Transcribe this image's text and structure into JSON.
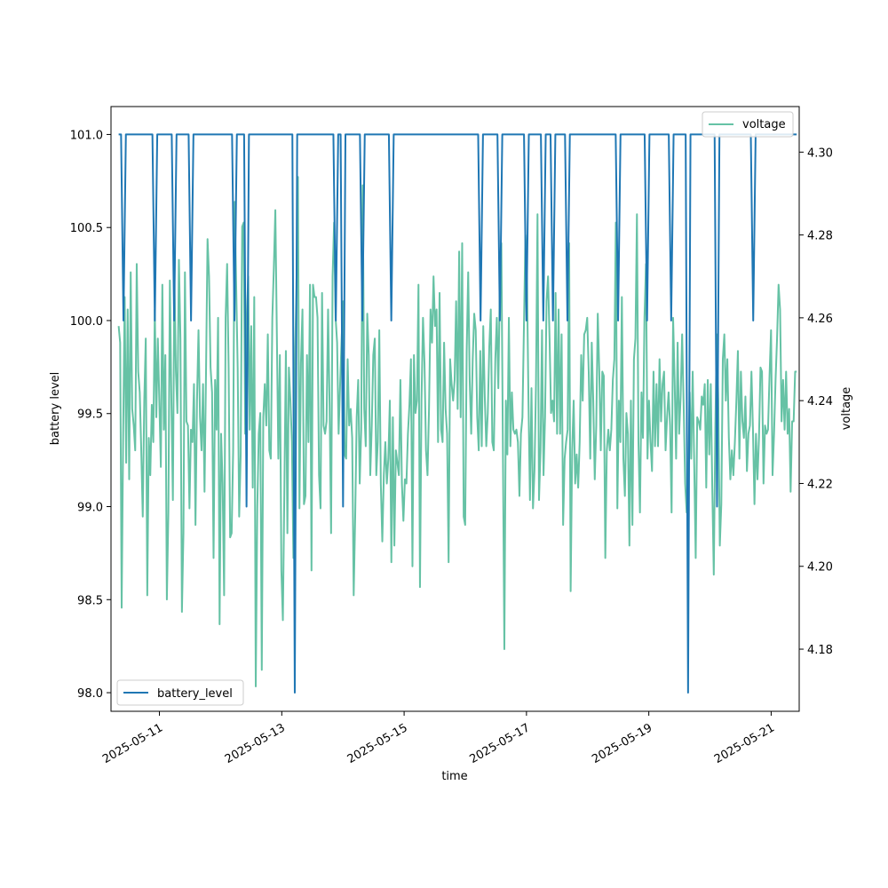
{
  "chart_data": {
    "type": "line",
    "xlabel": "time",
    "ylabel_left": "battery level",
    "ylabel_right": "voltage",
    "x_range": [
      "2025-05-10 08:00",
      "2025-05-21 10:00"
    ],
    "xlim": [
      "2025-05-10 05:00",
      "2025-05-21 11:00"
    ],
    "x_ticks": [
      "2025-05-11",
      "2025-05-13",
      "2025-05-15",
      "2025-05-17",
      "2025-05-19",
      "2025-05-21"
    ],
    "ylim_left": [
      97.9,
      101.15
    ],
    "y_ticks_left": [
      "98.0",
      "98.5",
      "99.0",
      "99.5",
      "100.0",
      "100.5",
      "101.0"
    ],
    "ylim_right": [
      4.165,
      4.311
    ],
    "y_ticks_right": [
      "4.18",
      "4.20",
      "4.22",
      "4.24",
      "4.26",
      "4.28",
      "4.30"
    ],
    "grid": false,
    "colors": {
      "battery_level": "#1f77b4",
      "voltage": "#66c2a5"
    },
    "legends": [
      {
        "name": "battery_level",
        "placement": "lower-left"
      },
      {
        "name": "voltage",
        "placement": "upper-right"
      }
    ],
    "series": [
      {
        "name": "battery_level",
        "axis": "left",
        "values": [
          101,
          101,
          100,
          101,
          101,
          101,
          101,
          101,
          101,
          101,
          101,
          101,
          101,
          101,
          101,
          100,
          101,
          101,
          101,
          101,
          101,
          101,
          101,
          100,
          101,
          101,
          101,
          101,
          101,
          101,
          100,
          101,
          101,
          101,
          101,
          101,
          101,
          101,
          101,
          101,
          101,
          101,
          101,
          101,
          101,
          101,
          101,
          101,
          100,
          101,
          101,
          101,
          101,
          99,
          101,
          101,
          101,
          101,
          101,
          101,
          101,
          101,
          101,
          101,
          101,
          101,
          101,
          101,
          101,
          101,
          101,
          101,
          101,
          98,
          101,
          101,
          101,
          101,
          101,
          101,
          101,
          101,
          101,
          101,
          101,
          101,
          101,
          101,
          101,
          101,
          100,
          101,
          101,
          99,
          101,
          101,
          101,
          101,
          101,
          101,
          101,
          100,
          101,
          101,
          101,
          101,
          101,
          101,
          101,
          101,
          101,
          101,
          101,
          100,
          101,
          101,
          101,
          101,
          101,
          101,
          101,
          101,
          101,
          101,
          101,
          101,
          101,
          101,
          101,
          101,
          101,
          101,
          101,
          101,
          101,
          101,
          101,
          101,
          101,
          101,
          101,
          101,
          101,
          101,
          101,
          101,
          101,
          101,
          101,
          101,
          100,
          101,
          101,
          101,
          101,
          101,
          101,
          101,
          100,
          101,
          101,
          101,
          101,
          101,
          101,
          101,
          101,
          101,
          101,
          100,
          101,
          101,
          101,
          101,
          101,
          101,
          100,
          101,
          101,
          101,
          100,
          101,
          101,
          101,
          101,
          101,
          100,
          101,
          101,
          101,
          101,
          101,
          101,
          101,
          101,
          101,
          101,
          101,
          101,
          101,
          101,
          101,
          101,
          101,
          101,
          101,
          101,
          100,
          101,
          101,
          101,
          101,
          101,
          101,
          101,
          101,
          101,
          101,
          101,
          100,
          101,
          101,
          101,
          101,
          101,
          101,
          101,
          101,
          101,
          100,
          101,
          101,
          101,
          101,
          101,
          101,
          98,
          101,
          101,
          101,
          101,
          101,
          101,
          101,
          101,
          101,
          101,
          101,
          99,
          101,
          101,
          101,
          101,
          101,
          101,
          101,
          101,
          101,
          101,
          101,
          101,
          101,
          101,
          100,
          101,
          101,
          101,
          101,
          101,
          101,
          101,
          101,
          101,
          101,
          101,
          101,
          101,
          101,
          101,
          101,
          101,
          101
        ]
      },
      {
        "name": "voltage",
        "axis": "right",
        "values": [
          4.258,
          4.254,
          4.19,
          4.232,
          4.265,
          4.225,
          4.262,
          4.221,
          4.271,
          4.238,
          4.234,
          4.228,
          4.273,
          4.247,
          4.242,
          4.228,
          4.212,
          4.24,
          4.255,
          4.193,
          4.231,
          4.222,
          4.239,
          4.23,
          4.262,
          4.236,
          4.255,
          4.24,
          4.224,
          4.268,
          4.233,
          4.251,
          4.192,
          4.213,
          4.269,
          4.24,
          4.216,
          4.27,
          4.247,
          4.237,
          4.274,
          4.255,
          4.189,
          4.208,
          4.271,
          4.235,
          4.234,
          4.214,
          4.233,
          4.23,
          4.244,
          4.21,
          4.24,
          4.257,
          4.236,
          4.228,
          4.244,
          4.218,
          4.247,
          4.279,
          4.27,
          4.248,
          4.242,
          4.202,
          4.245,
          4.233,
          4.26,
          4.186,
          4.232,
          4.22,
          4.193,
          4.26,
          4.273,
          4.248,
          4.207,
          4.208,
          4.228,
          4.288,
          4.268,
          4.248,
          4.212,
          4.227,
          4.282,
          4.283,
          4.232,
          4.26,
          4.27,
          4.233,
          4.258,
          4.219,
          4.265,
          4.171,
          4.214,
          4.232,
          4.237,
          4.175,
          4.236,
          4.244,
          4.234,
          4.256,
          4.228,
          4.226,
          4.26,
          4.272,
          4.286,
          4.256,
          4.226,
          4.251,
          4.199,
          4.187,
          4.219,
          4.252,
          4.208,
          4.248,
          4.24,
          4.23,
          4.202,
          4.249,
          4.267,
          4.294,
          4.214,
          4.249,
          4.262,
          4.215,
          4.217,
          4.251,
          4.23,
          4.268,
          4.199,
          4.268,
          4.265,
          4.265,
          4.26,
          4.222,
          4.214,
          4.266,
          4.234,
          4.232,
          4.235,
          4.262,
          4.239,
          4.208,
          4.27,
          4.283,
          4.26,
          4.254,
          4.232,
          4.244,
          4.255,
          4.264,
          4.227,
          4.226,
          4.25,
          4.234,
          4.238,
          4.231,
          4.193,
          4.212,
          4.236,
          4.245,
          4.22,
          4.233,
          4.292,
          4.238,
          4.229,
          4.261,
          4.251,
          4.222,
          4.234,
          4.251,
          4.255,
          4.222,
          4.23,
          4.257,
          4.22,
          4.206,
          4.222,
          4.23,
          4.22,
          4.226,
          4.24,
          4.201,
          4.236,
          4.205,
          4.228,
          4.225,
          4.222,
          4.245,
          4.22,
          4.211,
          4.221,
          4.22,
          4.232,
          4.239,
          4.25,
          4.2,
          4.251,
          4.237,
          4.24,
          4.268,
          4.195,
          4.24,
          4.26,
          4.249,
          4.228,
          4.222,
          4.238,
          4.262,
          4.254,
          4.27,
          4.258,
          4.262,
          4.23,
          4.266,
          4.233,
          4.23,
          4.254,
          4.238,
          4.232,
          4.201,
          4.25,
          4.244,
          4.24,
          4.245,
          4.264,
          4.238,
          4.276,
          4.236,
          4.278,
          4.212,
          4.21,
          4.252,
          4.271,
          4.245,
          4.232,
          4.25,
          4.261,
          4.257,
          4.236,
          4.228,
          4.252,
          4.229,
          4.258,
          4.241,
          4.229,
          4.237,
          4.253,
          4.262,
          4.23,
          4.228,
          4.25,
          4.26,
          4.243,
          4.268,
          4.278,
          4.23,
          4.18,
          4.24,
          4.227,
          4.26,
          4.229,
          4.242,
          4.233,
          4.232,
          4.233,
          4.23,
          4.217,
          4.232,
          4.236,
          4.258,
          4.28,
          4.27,
          4.24,
          4.216,
          4.243,
          4.214,
          4.223,
          4.244,
          4.285,
          4.216,
          4.228,
          4.257,
          4.222,
          4.236,
          4.264,
          4.27,
          4.255,
          4.237,
          4.24,
          4.235,
          4.266,
          4.232,
          4.262,
          4.232,
          4.256,
          4.21,
          4.226,
          4.23,
          4.233,
          4.278,
          4.194,
          4.228,
          4.24,
          4.22,
          4.227,
          4.219,
          4.23,
          4.251,
          4.24,
          4.256,
          4.257,
          4.26,
          4.247,
          4.226,
          4.254,
          4.24,
          4.221,
          4.234,
          4.261,
          4.247,
          4.228,
          4.247,
          4.246,
          4.202,
          4.228,
          4.233,
          4.228,
          4.233,
          4.245,
          4.25,
          4.283,
          4.214,
          4.24,
          4.23,
          4.265,
          4.226,
          4.217,
          4.237,
          4.232,
          4.205,
          4.24,
          4.21,
          4.25,
          4.255,
          4.285,
          4.23,
          4.213,
          4.242,
          4.231,
          4.26,
          4.273,
          4.226,
          4.24,
          4.23,
          4.223,
          4.247,
          4.229,
          4.244,
          4.229,
          4.25,
          4.235,
          4.244,
          4.247,
          4.228,
          4.236,
          4.242,
          4.234,
          4.213,
          4.26,
          4.245,
          4.226,
          4.254,
          4.232,
          4.241,
          4.256,
          4.239,
          4.22,
          4.213,
          4.217,
          4.242,
          4.226,
          4.247,
          4.225,
          4.202,
          4.236,
          4.235,
          4.233,
          4.241,
          4.239,
          4.244,
          4.219,
          4.245,
          4.227,
          4.244,
          4.219,
          4.198,
          4.233,
          4.256,
          4.24,
          4.205,
          4.215,
          4.25,
          4.256,
          4.24,
          4.25,
          4.231,
          4.221,
          4.228,
          4.222,
          4.23,
          4.24,
          4.252,
          4.226,
          4.247,
          4.235,
          4.231,
          4.241,
          4.223,
          4.232,
          4.234,
          4.247,
          4.233,
          4.215,
          4.232,
          4.221,
          4.231,
          4.248,
          4.247,
          4.22,
          4.234,
          4.232,
          4.233,
          4.246,
          4.257,
          4.222,
          4.232,
          4.245,
          4.255,
          4.268,
          4.262,
          4.235,
          4.245,
          4.233,
          4.247,
          4.232,
          4.238,
          4.218,
          4.235,
          4.235,
          4.247,
          4.247
        ]
      }
    ]
  }
}
